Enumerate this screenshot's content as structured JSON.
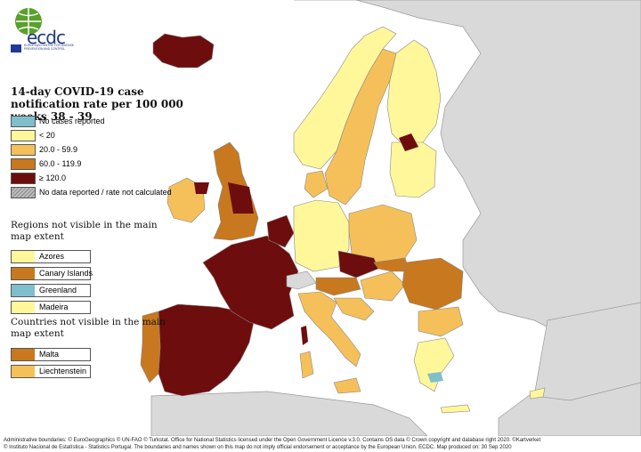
{
  "title": "14-day COVID-19 case notification rate per 100 000 weeks 38 - 39",
  "logo": {
    "text": "ecdc",
    "sub": "EUROPEAN CENTRE FOR DISEASE PREVENTION AND CONTROL"
  },
  "legend": [
    {
      "label": "No cases reported",
      "color": "#7fbfcc"
    },
    {
      "label": "< 20",
      "color": "#fff79a"
    },
    {
      "label": "20.0 - 59.9",
      "color": "#f5c05a"
    },
    {
      "label": "60.0 - 119.9",
      "color": "#c8781e"
    },
    {
      "label": "≥ 120.0",
      "color": "#6e0d0d"
    },
    {
      "label": "No data reported / rate not calculated",
      "color": "hatch"
    }
  ],
  "regions_heading": "Regions not visible in the main map extent",
  "regions": [
    {
      "label": "Azores",
      "color": "#fff79a"
    },
    {
      "label": "Canary Islands",
      "color": "#c8781e"
    },
    {
      "label": "Greenland",
      "color": "#7fbfcc"
    },
    {
      "label": "Madeira",
      "color": "#fff79a"
    }
  ],
  "countries_heading": "Countries not visible in the main map extent",
  "countries": [
    {
      "label": "Malta",
      "color": "#c8781e"
    },
    {
      "label": "Liechtenstein",
      "color": "#f5c05a"
    }
  ],
  "footer": [
    "Administrative boundaries: © EuroGeographics © UN-FAO © Turkstat. Office for National Statistics licensed under the Open Government Licence v.3.0. Contains OS data © Crown copyright and database right 2020. ©Kartverket",
    "© Instituto Nacional de Estatística - Statistics Portugal. The boundaries and names shown on this map do not imply official endorsement or acceptance by the European Union. ECDC. Map produced on: 30 Sep 2020"
  ],
  "colors": {
    "sea": "#ffffff",
    "non_eu": "#d9d9d9",
    "border": "#9a9a9a"
  }
}
